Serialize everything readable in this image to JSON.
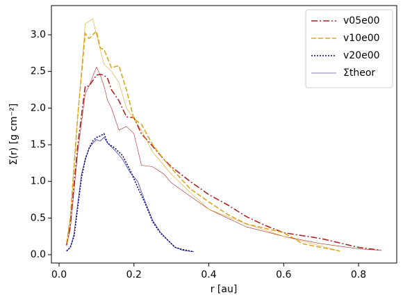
{
  "chart_data": {
    "type": "line",
    "xlabel": "r [au]",
    "ylabel": "Σ(r) [g cm⁻²]",
    "xlim": [
      -0.0204,
      0.902
    ],
    "ylim": [
      -0.114,
      3.399
    ],
    "xticks": [
      {
        "value": 0,
        "label": "0.0"
      },
      0.2,
      0.4,
      0.6,
      0.8
    ],
    "yticks": [
      {
        "value": 0,
        "label": "0.0"
      },
      0.5,
      {
        "value": 1,
        "label": "1.0"
      },
      1.5,
      {
        "value": 2,
        "label": "2.0"
      },
      2.5,
      {
        "value": 3,
        "label": "3.0"
      }
    ],
    "grid": false,
    "legend": "upper right",
    "series": [
      {
        "name": "v05e00",
        "color": "#b22222",
        "style": "dashdot",
        "width": "thick",
        "x": [
          0.02,
          0.03,
          0.05,
          0.07,
          0.08,
          0.1,
          0.11,
          0.12,
          0.13,
          0.14,
          0.16,
          0.18,
          0.2,
          0.22,
          0.25,
          0.28,
          0.3,
          0.35,
          0.4,
          0.45,
          0.5,
          0.55,
          0.6,
          0.7,
          0.8,
          0.86
        ],
        "values": [
          0.13,
          0.4,
          1.5,
          2.3,
          2.3,
          2.45,
          2.46,
          2.45,
          2.4,
          2.25,
          2.1,
          1.88,
          1.87,
          1.65,
          1.48,
          1.3,
          1.2,
          1.0,
          0.82,
          0.68,
          0.52,
          0.4,
          0.3,
          0.22,
          0.1,
          0.06
        ]
      },
      {
        "name": "v10e00",
        "color": "#daa520",
        "style": "dashed",
        "width": "thick",
        "x": [
          0.02,
          0.03,
          0.05,
          0.07,
          0.08,
          0.1,
          0.11,
          0.12,
          0.14,
          0.16,
          0.18,
          0.2,
          0.22,
          0.25,
          0.28,
          0.3,
          0.35,
          0.4,
          0.45,
          0.5,
          0.6,
          0.65,
          0.7,
          0.75
        ],
        "values": [
          0.15,
          0.5,
          1.9,
          3.02,
          2.95,
          3.05,
          2.82,
          2.8,
          2.55,
          2.58,
          2.25,
          1.85,
          1.78,
          1.5,
          1.3,
          1.18,
          0.9,
          0.72,
          0.55,
          0.42,
          0.3,
          0.15,
          0.1,
          0.05
        ]
      },
      {
        "name": "v20e00",
        "color": "#000080",
        "style": "dotted",
        "width": "thick",
        "x": [
          0.02,
          0.03,
          0.04,
          0.05,
          0.06,
          0.07,
          0.08,
          0.09,
          0.1,
          0.11,
          0.12,
          0.13,
          0.15,
          0.17,
          0.19,
          0.21,
          0.23,
          0.25,
          0.27,
          0.29,
          0.31,
          0.33,
          0.36
        ],
        "values": [
          0.05,
          0.1,
          0.25,
          0.65,
          1.05,
          1.3,
          1.45,
          1.55,
          1.6,
          1.62,
          1.65,
          1.52,
          1.45,
          1.35,
          1.15,
          0.92,
          0.7,
          0.45,
          0.3,
          0.2,
          0.1,
          0.07,
          0.04
        ]
      },
      {
        "color": "#b22222",
        "style": "solid",
        "width": "thin",
        "x": [
          0.02,
          0.03,
          0.05,
          0.07,
          0.08,
          0.1,
          0.11,
          0.12,
          0.13,
          0.14,
          0.16,
          0.18,
          0.2,
          0.22,
          0.25,
          0.28,
          0.3,
          0.35,
          0.4,
          0.5,
          0.6,
          0.7,
          0.8,
          0.86
        ],
        "values": [
          0.12,
          0.35,
          1.4,
          2.2,
          2.3,
          2.56,
          2.45,
          2.3,
          2.1,
          2.0,
          1.7,
          1.75,
          1.65,
          1.22,
          1.2,
          1.1,
          0.98,
          0.8,
          0.62,
          0.38,
          0.25,
          0.15,
          0.08,
          0.06
        ]
      },
      {
        "color": "#daa520",
        "style": "solid",
        "width": "thin",
        "x": [
          0.02,
          0.03,
          0.05,
          0.07,
          0.09,
          0.1,
          0.11,
          0.12,
          0.14,
          0.16,
          0.18,
          0.2,
          0.22,
          0.25,
          0.28,
          0.3,
          0.35,
          0.4,
          0.5,
          0.6,
          0.7,
          0.75
        ],
        "values": [
          0.15,
          0.5,
          1.9,
          3.15,
          3.22,
          3.0,
          2.8,
          2.6,
          2.5,
          2.35,
          2.0,
          1.85,
          1.7,
          1.4,
          1.22,
          1.1,
          0.85,
          0.62,
          0.42,
          0.25,
          0.12,
          0.05
        ]
      },
      {
        "name": "Σtheor",
        "color": "#000080",
        "style": "solid",
        "width": "thin",
        "x": [
          0.02,
          0.03,
          0.04,
          0.05,
          0.06,
          0.07,
          0.08,
          0.09,
          0.1,
          0.11,
          0.12,
          0.13,
          0.15,
          0.17,
          0.19,
          0.21,
          0.23,
          0.25,
          0.27,
          0.29,
          0.31,
          0.33,
          0.36
        ],
        "values": [
          0.05,
          0.1,
          0.28,
          0.7,
          1.1,
          1.3,
          1.45,
          1.52,
          1.57,
          1.55,
          1.6,
          1.52,
          1.42,
          1.3,
          1.12,
          1.0,
          0.72,
          0.47,
          0.31,
          0.2,
          0.1,
          0.06,
          0.04
        ]
      }
    ]
  }
}
